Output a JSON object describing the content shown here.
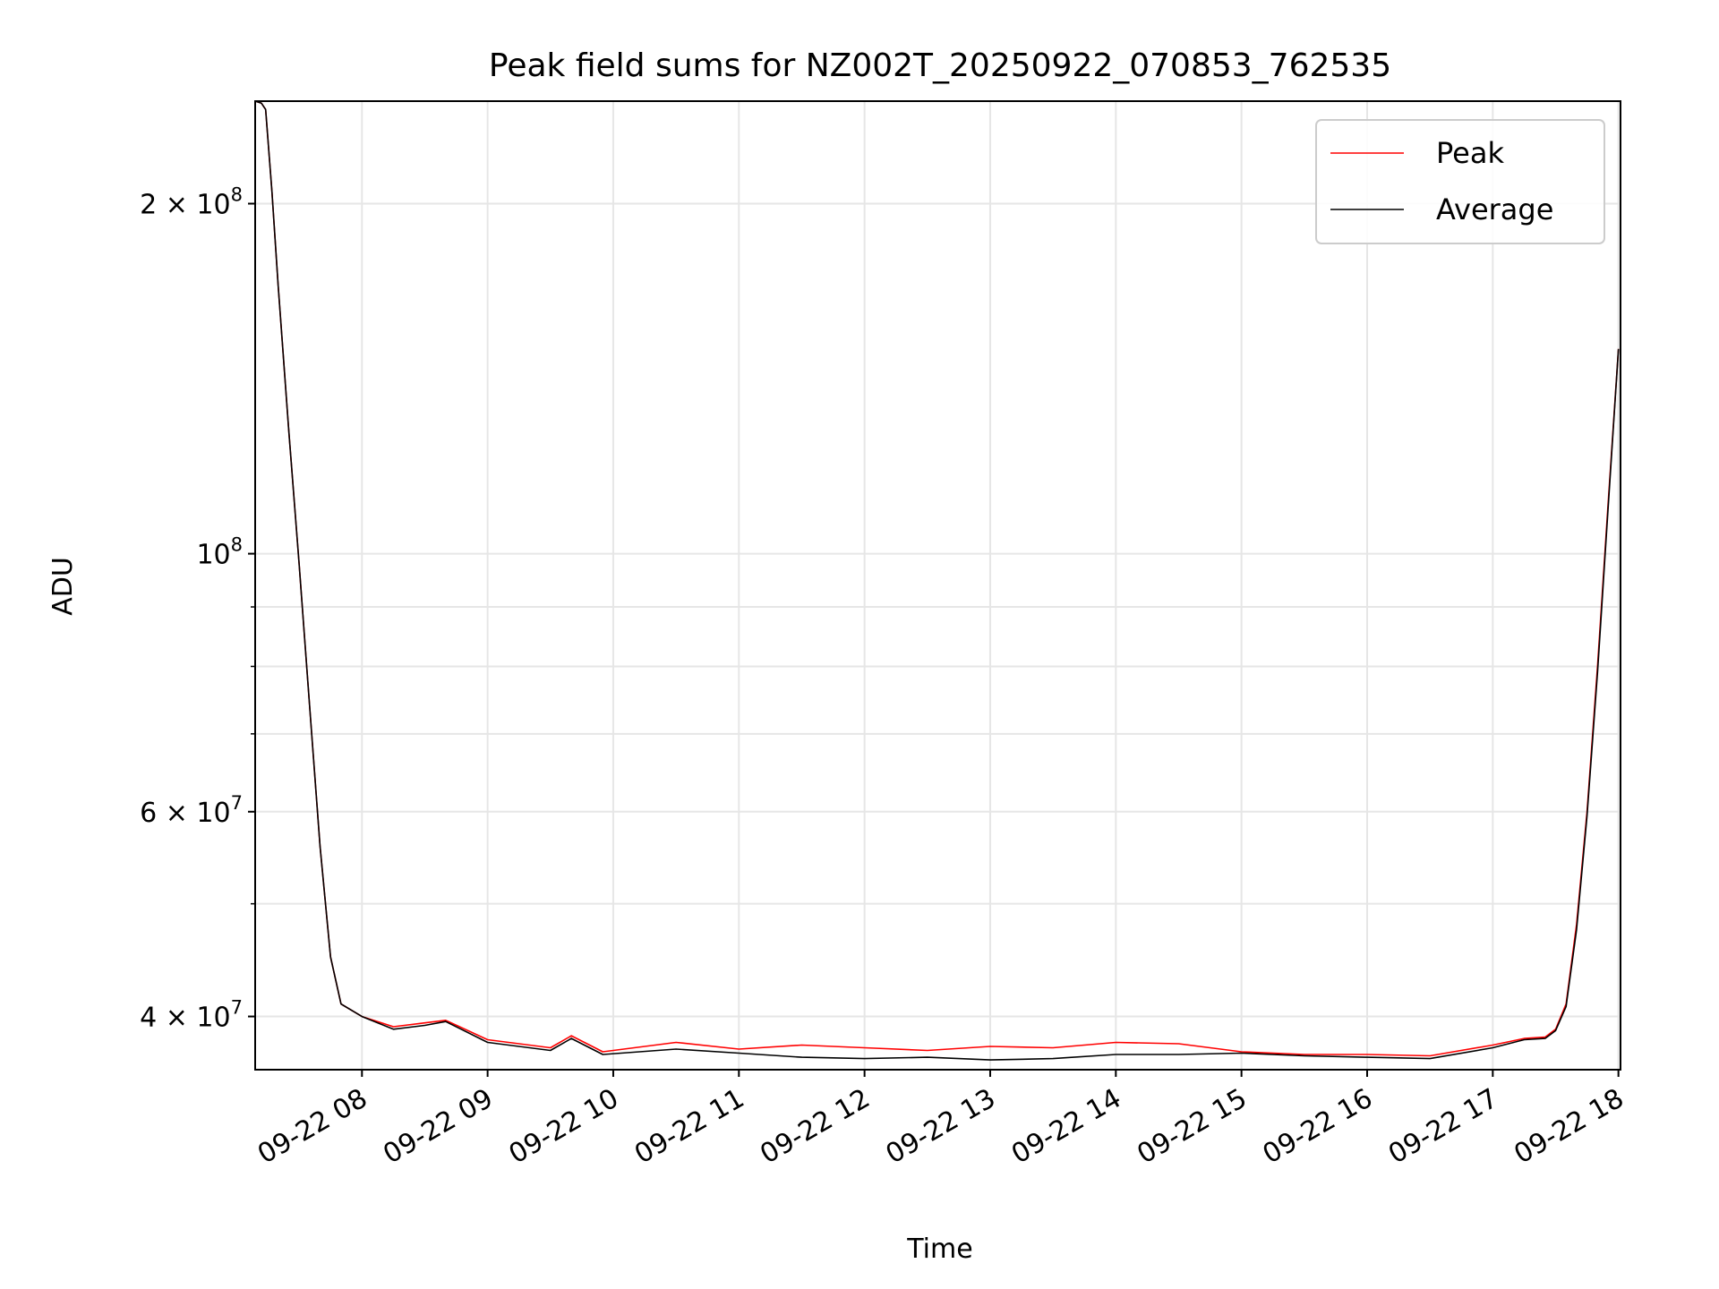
{
  "chart_data": {
    "type": "line",
    "title": "Peak field sums for NZ002T_20250922_070853_762535",
    "xlabel": "Time",
    "ylabel": "ADU",
    "y_scale": "log",
    "ylim": [
      36000000,
      245000000
    ],
    "xlim": [
      "2025-09-22 07:09",
      "2025-09-22 18:01"
    ],
    "x_tick_labels": [
      "09-22 08",
      "09-22 09",
      "09-22 10",
      "09-22 11",
      "09-22 12",
      "09-22 13",
      "09-22 14",
      "09-22 15",
      "09-22 16",
      "09-22 17",
      "09-22 18"
    ],
    "y_tick_labels": [
      {
        "value": 200000000,
        "base": "2 × 10",
        "exp": "8"
      },
      {
        "value": 100000000,
        "base": "10",
        "exp": "8"
      },
      {
        "value": 60000000,
        "base": "6 × 10",
        "exp": "7"
      },
      {
        "value": 40000000,
        "base": "4 × 10",
        "exp": "7"
      }
    ],
    "grid": true,
    "legend_position": "top-right",
    "series": [
      {
        "name": "Peak",
        "color": "#ff0000",
        "x": [
          "2025-09-22 07:09",
          "2025-09-22 07:12",
          "2025-09-22 07:14",
          "2025-09-22 07:17",
          "2025-09-22 07:20",
          "2025-09-22 07:25",
          "2025-09-22 07:30",
          "2025-09-22 07:35",
          "2025-09-22 07:40",
          "2025-09-22 07:45",
          "2025-09-22 07:50",
          "2025-09-22 08:00",
          "2025-09-22 08:15",
          "2025-09-22 08:30",
          "2025-09-22 08:40",
          "2025-09-22 09:00",
          "2025-09-22 09:30",
          "2025-09-22 09:40",
          "2025-09-22 09:55",
          "2025-09-22 10:30",
          "2025-09-22 11:00",
          "2025-09-22 11:30",
          "2025-09-22 12:00",
          "2025-09-22 12:30",
          "2025-09-22 13:00",
          "2025-09-22 13:30",
          "2025-09-22 14:00",
          "2025-09-22 14:30",
          "2025-09-22 15:00",
          "2025-09-22 15:30",
          "2025-09-22 16:00",
          "2025-09-22 16:30",
          "2025-09-22 17:00",
          "2025-09-22 17:15",
          "2025-09-22 17:25",
          "2025-09-22 17:30",
          "2025-09-22 17:35",
          "2025-09-22 17:40",
          "2025-09-22 17:45",
          "2025-09-22 17:50",
          "2025-09-22 17:55",
          "2025-09-22 18:00"
        ],
        "values": [
          245000000,
          244000000,
          241000000,
          205000000,
          170000000,
          128000000,
          98000000,
          74000000,
          56000000,
          45000000,
          41000000,
          40000000,
          39200000,
          39500000,
          39700000,
          38200000,
          37600000,
          38500000,
          37300000,
          38000000,
          37500000,
          37800000,
          37600000,
          37400000,
          37700000,
          37600000,
          38000000,
          37900000,
          37300000,
          37100000,
          37100000,
          37000000,
          37800000,
          38300000,
          38400000,
          39000000,
          41000000,
          48000000,
          60000000,
          80000000,
          110000000,
          150000000
        ]
      },
      {
        "name": "Average",
        "color": "#000000",
        "x": [
          "2025-09-22 07:09",
          "2025-09-22 07:12",
          "2025-09-22 07:14",
          "2025-09-22 07:17",
          "2025-09-22 07:20",
          "2025-09-22 07:25",
          "2025-09-22 07:30",
          "2025-09-22 07:35",
          "2025-09-22 07:40",
          "2025-09-22 07:45",
          "2025-09-22 07:50",
          "2025-09-22 08:00",
          "2025-09-22 08:15",
          "2025-09-22 08:30",
          "2025-09-22 08:40",
          "2025-09-22 09:00",
          "2025-09-22 09:30",
          "2025-09-22 09:40",
          "2025-09-22 09:55",
          "2025-09-22 10:30",
          "2025-09-22 11:00",
          "2025-09-22 11:30",
          "2025-09-22 12:00",
          "2025-09-22 12:30",
          "2025-09-22 13:00",
          "2025-09-22 13:30",
          "2025-09-22 14:00",
          "2025-09-22 14:30",
          "2025-09-22 15:00",
          "2025-09-22 15:30",
          "2025-09-22 16:00",
          "2025-09-22 16:30",
          "2025-09-22 17:00",
          "2025-09-22 17:15",
          "2025-09-22 17:25",
          "2025-09-22 17:30",
          "2025-09-22 17:35",
          "2025-09-22 17:40",
          "2025-09-22 17:45",
          "2025-09-22 17:50",
          "2025-09-22 17:55",
          "2025-09-22 18:00"
        ],
        "values": [
          245000000,
          244000000,
          241000000,
          205000000,
          170000000,
          128000000,
          98000000,
          74000000,
          56000000,
          45000000,
          41000000,
          40000000,
          39000000,
          39300000,
          39600000,
          38000000,
          37400000,
          38300000,
          37100000,
          37500000,
          37200000,
          36900000,
          36800000,
          36900000,
          36700000,
          36800000,
          37100000,
          37100000,
          37200000,
          37000000,
          36900000,
          36800000,
          37600000,
          38200000,
          38300000,
          38900000,
          40800000,
          47500000,
          59500000,
          79000000,
          109000000,
          150000000
        ]
      }
    ]
  }
}
